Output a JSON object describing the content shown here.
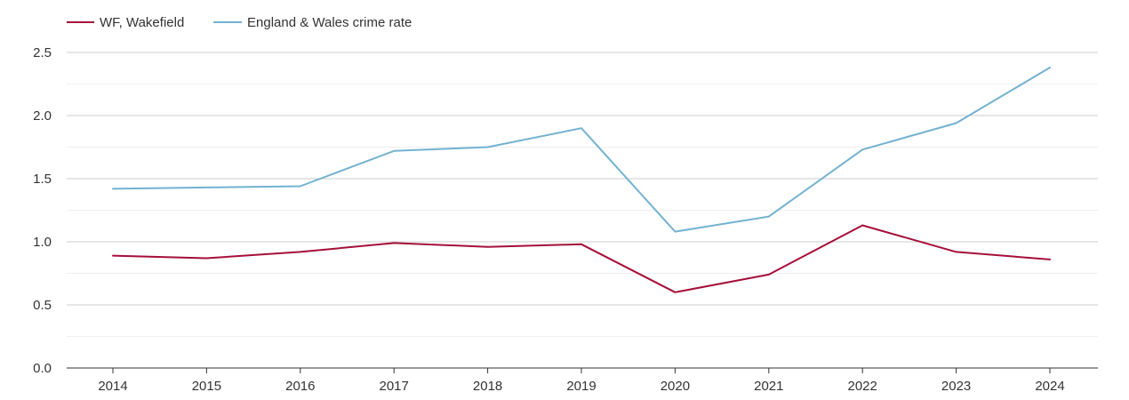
{
  "chart_data": {
    "type": "line",
    "title": "",
    "xlabel": "",
    "ylabel": "",
    "categories": [
      "2014",
      "2015",
      "2016",
      "2017",
      "2018",
      "2019",
      "2020",
      "2021",
      "2022",
      "2023",
      "2024"
    ],
    "ylim": [
      0,
      2.5
    ],
    "yticks": [
      "0.0",
      "0.5",
      "1.0",
      "1.5",
      "2.0",
      "2.5"
    ],
    "grid": true,
    "legend_position": "top-left",
    "series": [
      {
        "name": "WF, Wakefield",
        "color": "#a50f3a",
        "values": [
          0.89,
          0.87,
          0.92,
          0.99,
          0.96,
          0.98,
          0.6,
          0.74,
          1.13,
          0.92,
          0.86
        ]
      },
      {
        "name": "England & Wales crime rate",
        "color": "#73b2d1",
        "values": [
          1.42,
          1.43,
          1.44,
          1.72,
          1.75,
          1.9,
          1.08,
          1.2,
          1.73,
          1.94,
          2.38
        ]
      }
    ]
  }
}
